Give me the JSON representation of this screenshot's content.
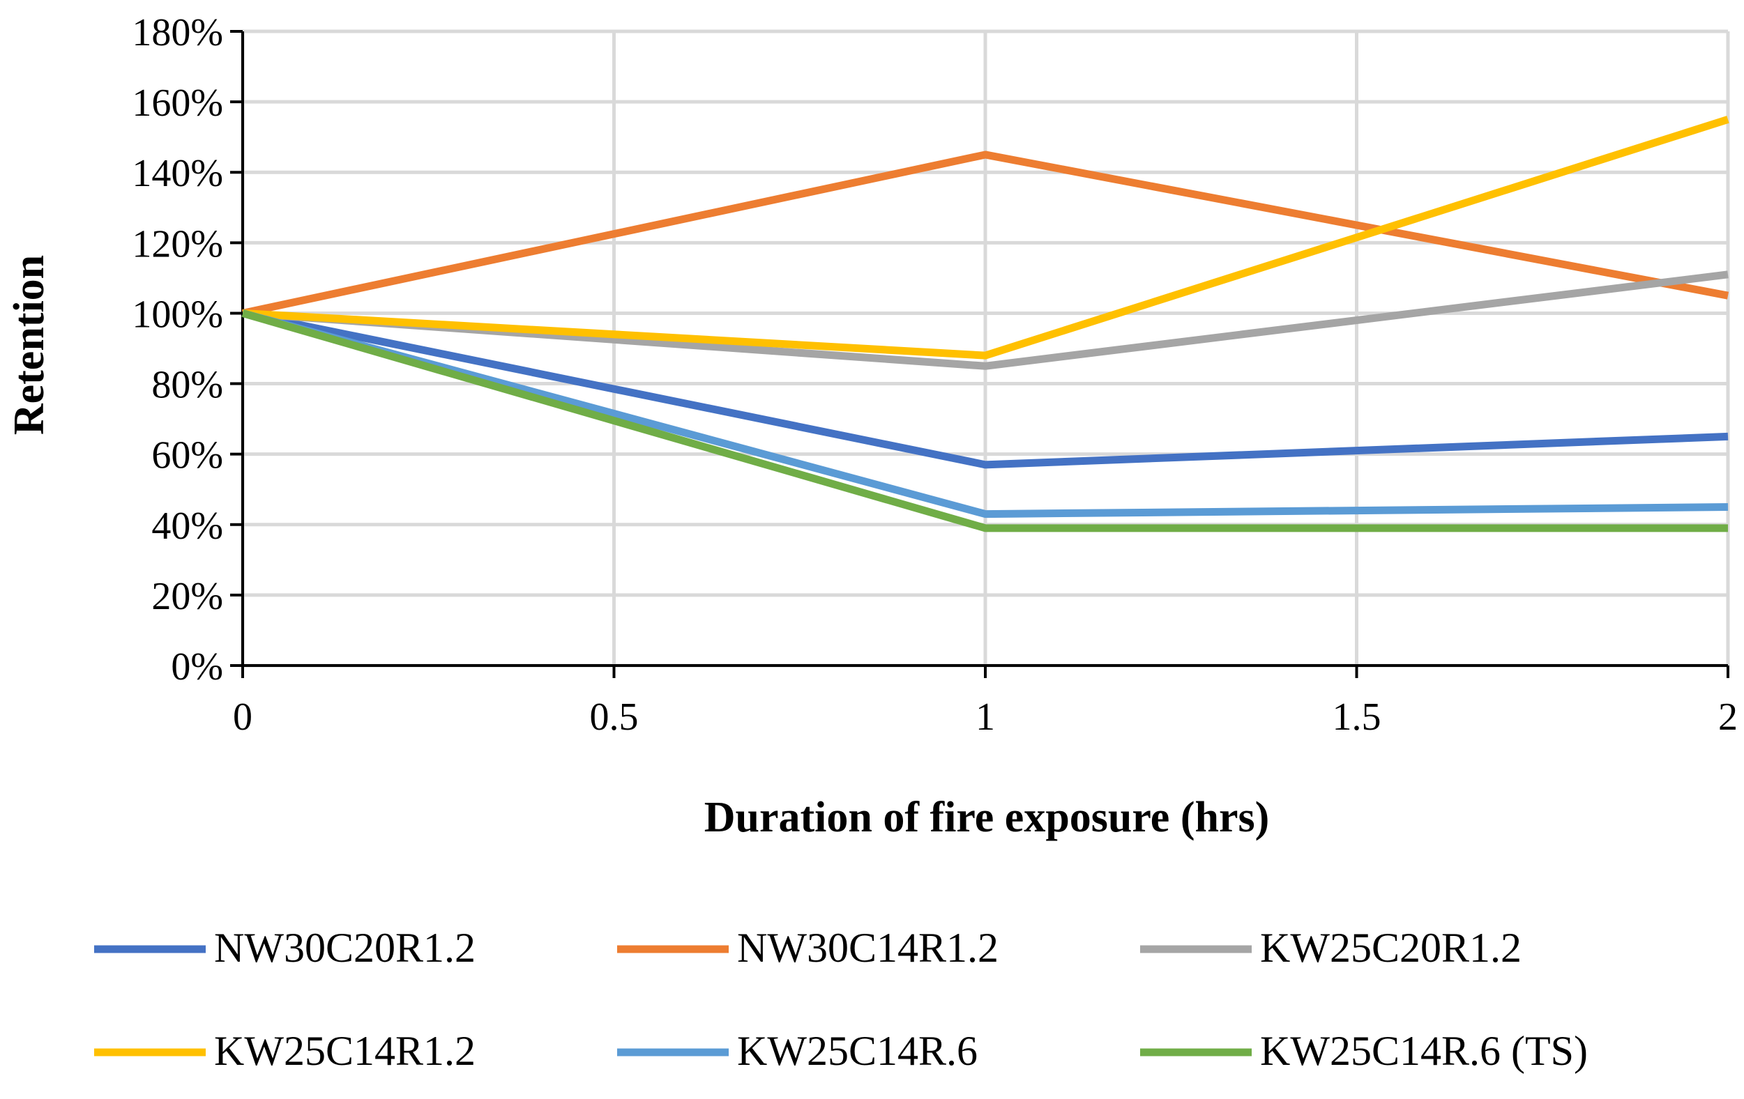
{
  "chart_data": {
    "type": "line",
    "title": "",
    "xlabel": "Duration of fire exposure (hrs)",
    "ylabel": "Retention",
    "x": [
      0,
      1,
      2
    ],
    "xlim": [
      0,
      2
    ],
    "ylim": [
      0,
      180
    ],
    "x_ticks": [
      0,
      0.5,
      1,
      1.5,
      2
    ],
    "x_tick_labels": [
      "0",
      "0.5",
      "1",
      "1.5",
      "2"
    ],
    "y_ticks": [
      0,
      20,
      40,
      60,
      80,
      100,
      120,
      140,
      160,
      180
    ],
    "y_tick_labels": [
      "0%",
      "20%",
      "40%",
      "60%",
      "80%",
      "100%",
      "120%",
      "140%",
      "160%",
      "180%"
    ],
    "grid": true,
    "legend_position": "bottom",
    "series": [
      {
        "name": "NW30C20R1.2",
        "color": "#4472C4",
        "values": [
          100,
          57,
          65
        ]
      },
      {
        "name": "NW30C14R1.2",
        "color": "#ED7D31",
        "values": [
          100,
          145,
          105
        ]
      },
      {
        "name": "KW25C20R1.2",
        "color": "#A5A5A5",
        "values": [
          100,
          85,
          111
        ]
      },
      {
        "name": "KW25C14R1.2",
        "color": "#FFC000",
        "values": [
          100,
          88,
          155
        ]
      },
      {
        "name": "KW25C14R.6",
        "color": "#5B9BD5",
        "values": [
          100,
          43,
          45
        ]
      },
      {
        "name": "KW25C14R.6 (TS)",
        "color": "#70AD47",
        "values": [
          100,
          39,
          39
        ]
      }
    ]
  }
}
